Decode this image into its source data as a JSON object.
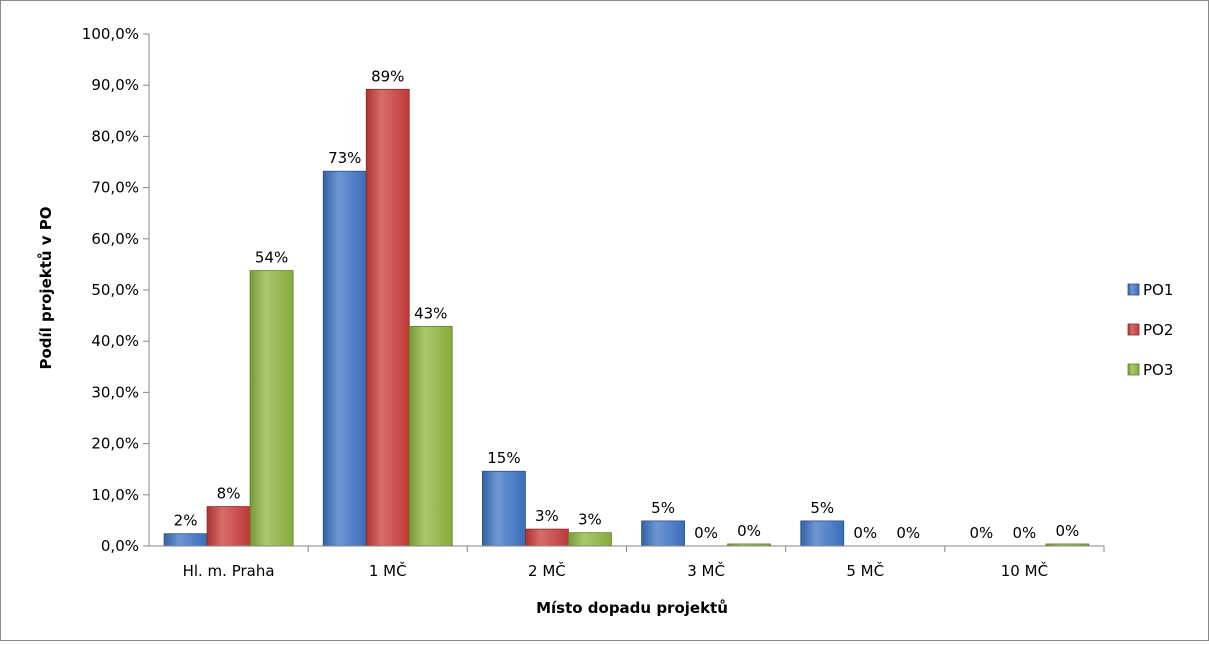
{
  "chart_data": {
    "type": "bar",
    "title": "",
    "xlabel": "Místo dopadu projektů",
    "ylabel": "Podíl projektů v PO",
    "ylim": [
      0,
      100
    ],
    "y_ticks": [
      "0,0%",
      "10,0%",
      "20,0%",
      "30,0%",
      "40,0%",
      "50,0%",
      "60,0%",
      "70,0%",
      "80,0%",
      "90,0%",
      "100,0%"
    ],
    "categories": [
      "Hl. m. Praha",
      "1 MČ",
      "2 MČ",
      "3 MČ",
      "5 MČ",
      "10 MČ"
    ],
    "series": [
      {
        "name": "PO1",
        "color": "#3C73C4",
        "values": [
          2.4,
          73.2,
          14.6,
          4.9,
          4.9,
          0
        ],
        "labels": [
          "2%",
          "73%",
          "15%",
          "5%",
          "5%",
          "0%"
        ]
      },
      {
        "name": "PO2",
        "color": "#C83C3A",
        "values": [
          7.7,
          89.2,
          3.3,
          0,
          0,
          0
        ],
        "labels": [
          "8%",
          "89%",
          "3%",
          "0%",
          "0%",
          "0%"
        ]
      },
      {
        "name": "PO3",
        "color": "#8DB43E",
        "values": [
          53.8,
          42.9,
          2.6,
          0.4,
          0,
          0.4
        ],
        "labels": [
          "54%",
          "43%",
          "3%",
          "0%",
          "0%",
          "0%"
        ]
      }
    ],
    "legend_position": "right",
    "grid": false
  }
}
